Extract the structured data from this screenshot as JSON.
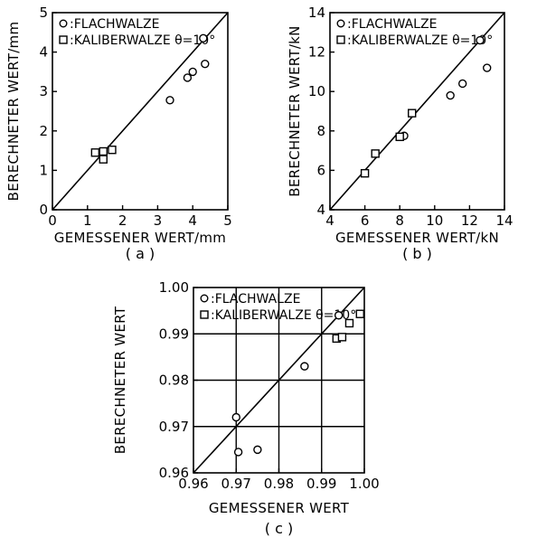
{
  "chart_data": [
    {
      "type": "scatter",
      "caption": "( a )",
      "xlabel": "GEMESSENER WERT/mm",
      "ylabel": "BERECHNETER WERT/mm",
      "xlim": [
        0,
        5
      ],
      "ylim": [
        0,
        5
      ],
      "xticks": [
        "0",
        "1",
        "2",
        "3",
        "4",
        "5"
      ],
      "yticks": [
        "0",
        "1",
        "2",
        "3",
        "4",
        "5"
      ],
      "grid": false,
      "diagonal": true,
      "legend_placement": "top-left",
      "series": [
        {
          "name": "FLACHWALZE",
          "marker": "circle",
          "points": [
            [
              3.35,
              2.78
            ],
            [
              3.85,
              3.35
            ],
            [
              4.0,
              3.5
            ],
            [
              4.35,
              3.7
            ],
            [
              4.3,
              4.35
            ]
          ]
        },
        {
          "name": "KALIBERWALZE θ=10°",
          "marker": "square",
          "points": [
            [
              1.22,
              1.45
            ],
            [
              1.45,
              1.28
            ],
            [
              1.45,
              1.48
            ],
            [
              1.7,
              1.52
            ]
          ]
        }
      ]
    },
    {
      "type": "scatter",
      "caption": "( b )",
      "xlabel": "GEMESSENER WERT/kN",
      "ylabel": "BERECHNETER WERT/kN",
      "xlim": [
        4,
        14
      ],
      "ylim": [
        4,
        14
      ],
      "xticks": [
        "4",
        "6",
        "8",
        "10",
        "12",
        "14"
      ],
      "yticks": [
        "4",
        "6",
        "8",
        "10",
        "12",
        "14"
      ],
      "grid": false,
      "diagonal": true,
      "legend_placement": "top-left",
      "series": [
        {
          "name": "FLACHWALZE",
          "marker": "circle",
          "points": [
            [
              8.25,
              7.75
            ],
            [
              10.9,
              9.8
            ],
            [
              11.6,
              10.4
            ],
            [
              13.0,
              11.2
            ],
            [
              12.6,
              12.6
            ]
          ]
        },
        {
          "name": "KALIBERWALZE θ=10°",
          "marker": "square",
          "points": [
            [
              6.0,
              5.85
            ],
            [
              6.6,
              6.85
            ],
            [
              8.0,
              7.7
            ],
            [
              8.7,
              8.9
            ]
          ]
        }
      ]
    },
    {
      "type": "scatter",
      "caption": "( c )",
      "xlabel": "GEMESSENER WERT",
      "ylabel": "BERECHNETER WERT",
      "xlim": [
        0.96,
        1.0
      ],
      "ylim": [
        0.96,
        1.0
      ],
      "xticks": [
        "0.96",
        "0.97",
        "0.98",
        "0.99",
        "1.00"
      ],
      "yticks": [
        "0.96",
        "0.97",
        "0.98",
        "0.99",
        "1.00"
      ],
      "grid": true,
      "diagonal": true,
      "legend_placement": "top-left",
      "series": [
        {
          "name": "FLACHWALZE",
          "marker": "circle",
          "points": [
            [
              0.97,
              0.972
            ],
            [
              0.9705,
              0.9645
            ],
            [
              0.975,
              0.965
            ],
            [
              0.986,
              0.983
            ],
            [
              0.994,
              0.994
            ]
          ]
        },
        {
          "name": "KALIBERWALZE θ=10°",
          "marker": "square",
          "points": [
            [
              0.9935,
              0.989
            ],
            [
              0.9948,
              0.9893
            ],
            [
              0.9965,
              0.9923
            ],
            [
              0.999,
              0.9943
            ]
          ]
        }
      ]
    }
  ]
}
